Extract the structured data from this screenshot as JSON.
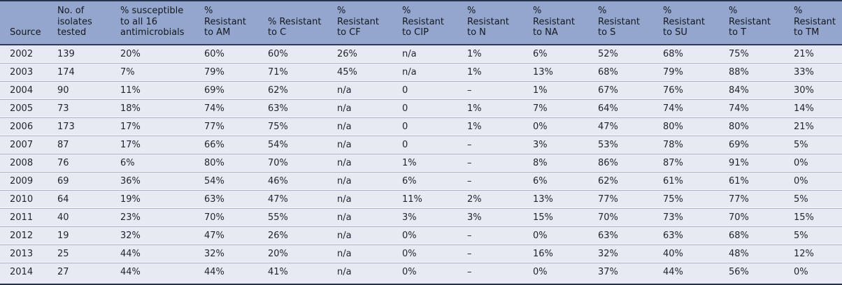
{
  "table": {
    "name": "antimicrobial-resistance-by-year",
    "columns": [
      {
        "id": "source",
        "label": "Source"
      },
      {
        "id": "isolates",
        "label": "No. of isolates tested"
      },
      {
        "id": "susceptible",
        "label": "% susceptible to all 16 antimicrobials"
      },
      {
        "id": "am",
        "label": "% Resistant to AM"
      },
      {
        "id": "c",
        "label": "% Resistant to C"
      },
      {
        "id": "cf",
        "label": "% Resistant to CF"
      },
      {
        "id": "cip",
        "label": "% Resistant to CIP"
      },
      {
        "id": "n",
        "label": "% Resistant to N"
      },
      {
        "id": "na",
        "label": "% Resistant to NA"
      },
      {
        "id": "s",
        "label": "% Resistant to S"
      },
      {
        "id": "su",
        "label": "% Resistant to SU"
      },
      {
        "id": "t",
        "label": "% Resistant to T"
      },
      {
        "id": "tm",
        "label": "% Resistant to TM"
      }
    ],
    "rows": [
      [
        "2002",
        "139",
        "20%",
        "60%",
        "60%",
        "26%",
        "n/a",
        "1%",
        "6%",
        "52%",
        "68%",
        "75%",
        "21%"
      ],
      [
        "2003",
        "174",
        "7%",
        "79%",
        "71%",
        "45%",
        "n/a",
        "1%",
        "13%",
        "68%",
        "79%",
        "88%",
        "33%"
      ],
      [
        "2004",
        "90",
        "11%",
        "69%",
        "62%",
        "n/a",
        "0",
        "–",
        "1%",
        "67%",
        "76%",
        "84%",
        "30%"
      ],
      [
        "2005",
        "73",
        "18%",
        "74%",
        "63%",
        "n/a",
        "0",
        "1%",
        "7%",
        "64%",
        "74%",
        "74%",
        "14%"
      ],
      [
        "2006",
        "173",
        "17%",
        "77%",
        "75%",
        "n/a",
        "0",
        "1%",
        "0%",
        "47%",
        "80%",
        "80%",
        "21%"
      ],
      [
        "2007",
        "87",
        "17%",
        "66%",
        "54%",
        "n/a",
        "0",
        "–",
        "3%",
        "53%",
        "78%",
        "69%",
        "5%"
      ],
      [
        "2008",
        "76",
        "6%",
        "80%",
        "70%",
        "n/a",
        "1%",
        "–",
        "8%",
        "86%",
        "87%",
        "91%",
        "0%"
      ],
      [
        "2009",
        "69",
        "36%",
        "54%",
        "46%",
        "n/a",
        "6%",
        "–",
        "6%",
        "62%",
        "61%",
        "61%",
        "0%"
      ],
      [
        "2010",
        "64",
        "19%",
        "63%",
        "47%",
        "n/a",
        "11%",
        "2%",
        "13%",
        "77%",
        "75%",
        "77%",
        "5%"
      ],
      [
        "2011",
        "40",
        "23%",
        "70%",
        "55%",
        "n/a",
        "3%",
        "3%",
        "15%",
        "70%",
        "73%",
        "70%",
        "15%"
      ],
      [
        "2012",
        "19",
        "32%",
        "47%",
        "26%",
        "n/a",
        "0%",
        "–",
        "0%",
        "63%",
        "63%",
        "68%",
        "5%"
      ],
      [
        "2013",
        "25",
        "44%",
        "32%",
        "20%",
        "n/a",
        "0%",
        "–",
        "16%",
        "32%",
        "40%",
        "48%",
        "12%"
      ],
      [
        "2014",
        "27",
        "44%",
        "44%",
        "41%",
        "n/a",
        "0%",
        "–",
        "0%",
        "37%",
        "44%",
        "56%",
        "0%"
      ]
    ]
  },
  "colors": {
    "header_bg": "#94a6ce",
    "header_text": "#14181f",
    "row_bg": "#e8eaf3",
    "row_text": "#21252e",
    "outer_border": "#26334d",
    "header_separator": "#2e3a57",
    "row_separator": "#aab0c1",
    "row_separator_highlight": "#f9fafd"
  }
}
